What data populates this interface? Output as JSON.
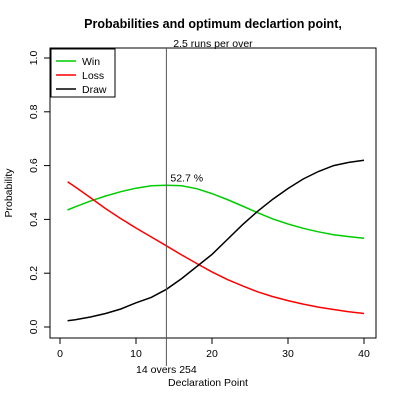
{
  "chart_data": {
    "type": "line",
    "title": "Probabilities and optimum declartion point,",
    "subtitle": "2.5 runs per over",
    "xlabel": "Declaration Point",
    "ylabel": "Probability",
    "xlim": [
      0,
      40
    ],
    "ylim": [
      0,
      1
    ],
    "x_ticks": [
      0,
      10,
      20,
      30,
      40
    ],
    "y_ticks": [
      0.0,
      0.2,
      0.4,
      0.6,
      0.8,
      1.0
    ],
    "x_tick_labels": [
      "0",
      "10",
      "20",
      "30",
      "40"
    ],
    "y_tick_labels": [
      "0.0",
      "0.2",
      "0.4",
      "0.6",
      "0.8",
      "1.0"
    ],
    "grid": false,
    "legend_position": "top-left",
    "x": [
      1,
      2,
      4,
      6,
      8,
      10,
      12,
      14,
      16,
      18,
      20,
      22,
      24,
      26,
      28,
      30,
      32,
      34,
      36,
      38,
      40
    ],
    "series": [
      {
        "name": "Win",
        "color": "#00cc00",
        "values": [
          0.435,
          0.447,
          0.468,
          0.487,
          0.503,
          0.516,
          0.525,
          0.527,
          0.525,
          0.514,
          0.496,
          0.474,
          0.45,
          0.425,
          0.402,
          0.383,
          0.367,
          0.354,
          0.343,
          0.336,
          0.33
        ]
      },
      {
        "name": "Loss",
        "color": "#ff0000",
        "values": [
          0.54,
          0.521,
          0.481,
          0.44,
          0.403,
          0.368,
          0.335,
          0.302,
          0.268,
          0.236,
          0.205,
          0.177,
          0.153,
          0.131,
          0.113,
          0.098,
          0.085,
          0.074,
          0.065,
          0.057,
          0.05
        ]
      },
      {
        "name": "Draw",
        "color": "#000000",
        "values": [
          0.023,
          0.027,
          0.037,
          0.05,
          0.067,
          0.09,
          0.11,
          0.14,
          0.18,
          0.225,
          0.27,
          0.325,
          0.38,
          0.43,
          0.475,
          0.515,
          0.55,
          0.578,
          0.6,
          0.612,
          0.62
        ]
      }
    ],
    "vline": {
      "x": 14,
      "label": "14 overs 254",
      "color": "#555555"
    },
    "annotations": [
      {
        "text": "52.7 %",
        "x": 14,
        "y": 0.56
      }
    ]
  }
}
